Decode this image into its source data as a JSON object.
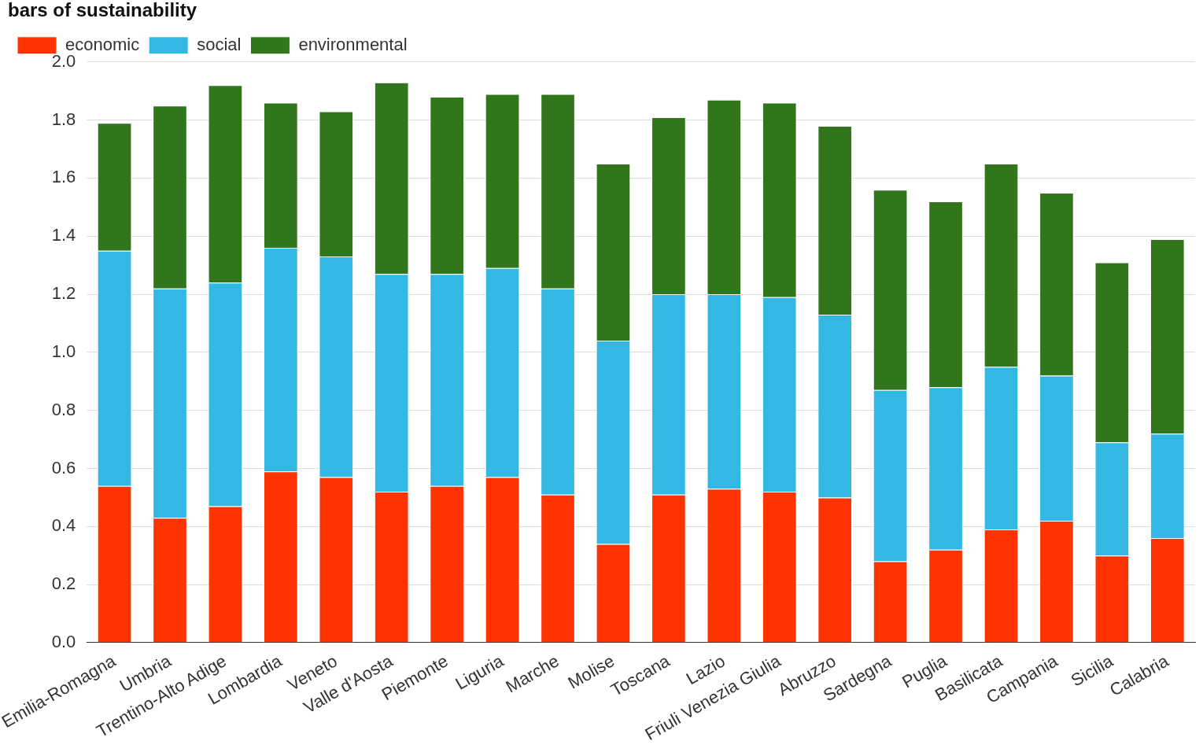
{
  "chart_data": {
    "type": "bar",
    "title": "bars of sustainability",
    "stacked": true,
    "categories": [
      "Emilia-Romagna",
      "Umbria",
      "Trentino-Alto Adige",
      "Lombardia",
      "Veneto",
      "Valle d'Aosta",
      "Piemonte",
      "Liguria",
      "Marche",
      "Molise",
      "Toscana",
      "Lazio",
      "Friuli Venezia Giulia",
      "Abruzzo",
      "Sardegna",
      "Puglia",
      "Basilicata",
      "Campania",
      "Sicilia",
      "Calabria"
    ],
    "series": [
      {
        "name": "economic",
        "color": "#ff3300",
        "values": [
          0.54,
          0.43,
          0.47,
          0.59,
          0.57,
          0.52,
          0.54,
          0.57,
          0.51,
          0.34,
          0.51,
          0.53,
          0.52,
          0.5,
          0.28,
          0.32,
          0.39,
          0.42,
          0.3,
          0.36
        ]
      },
      {
        "name": "social",
        "color": "#33b8e4",
        "values": [
          0.81,
          0.79,
          0.77,
          0.77,
          0.76,
          0.75,
          0.73,
          0.72,
          0.71,
          0.7,
          0.69,
          0.67,
          0.67,
          0.63,
          0.59,
          0.56,
          0.56,
          0.5,
          0.39,
          0.36
        ]
      },
      {
        "name": "environmental",
        "color": "#31761c",
        "values": [
          0.44,
          0.63,
          0.68,
          0.5,
          0.5,
          0.66,
          0.61,
          0.6,
          0.67,
          0.61,
          0.61,
          0.67,
          0.67,
          0.65,
          0.69,
          0.64,
          0.7,
          0.63,
          0.62,
          0.67
        ]
      }
    ],
    "ylim": [
      0,
      2.0
    ],
    "yticks": [
      {
        "value": 0,
        "label": "0.0"
      },
      {
        "value": 0.2,
        "label": "0.2"
      },
      {
        "value": 0.4,
        "label": "0.4"
      },
      {
        "value": 0.6,
        "label": "0.6"
      },
      {
        "value": 0.8,
        "label": "0.8"
      },
      {
        "value": 1,
        "label": "1.0"
      },
      {
        "value": 1.2,
        "label": "1.2"
      },
      {
        "value": 1.4,
        "label": "1.4"
      },
      {
        "value": 1.6,
        "label": "1.6"
      },
      {
        "value": 1.8,
        "label": "1.8"
      },
      {
        "value": 2,
        "label": "2.0"
      }
    ],
    "grid": "y",
    "legend": "top left"
  }
}
